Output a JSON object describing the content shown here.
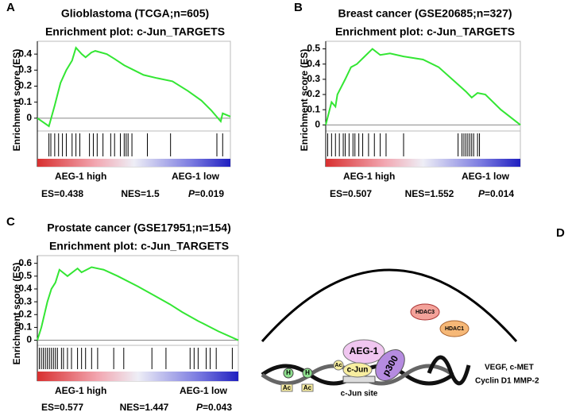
{
  "chart_data": [
    {
      "type": "line",
      "panel": "A",
      "title": "Glioblastoma (TCGA;n=605)",
      "subtitle": "Enrichment plot: c-Jun_TARGETS",
      "ylabel": "Enrichment score (ES)",
      "xlim": [
        0,
        100
      ],
      "ylim": [
        -0.08,
        0.48
      ],
      "yticks": [
        0,
        0.1,
        0.2,
        0.3,
        0.4
      ],
      "x": [
        0,
        6,
        9,
        12,
        15,
        18,
        20,
        23,
        25,
        28,
        30,
        33,
        36,
        40,
        45,
        50,
        55,
        62,
        70,
        78,
        85,
        90,
        95,
        96,
        100
      ],
      "values": [
        0,
        -0.05,
        0.08,
        0.22,
        0.3,
        0.36,
        0.44,
        0.4,
        0.38,
        0.41,
        0.42,
        0.41,
        0.4,
        0.37,
        0.33,
        0.3,
        0.27,
        0.25,
        0.23,
        0.17,
        0.11,
        0.05,
        -0.02,
        0.03,
        0.01
      ],
      "color": "#33e633",
      "hits": [
        6,
        7,
        9,
        11,
        13,
        15,
        18,
        20,
        22,
        27,
        29,
        31,
        34,
        38,
        40,
        43,
        45,
        46,
        47,
        49,
        57,
        69,
        93,
        96
      ],
      "high_label": "AEG-1 high",
      "low_label": "AEG-1 low",
      "es": "ES=0.438",
      "nes": "NES=1.5",
      "p_symbol": "P",
      "p_value": "=0.019"
    },
    {
      "type": "line",
      "panel": "B",
      "title": "Breast cancer (GSE20685;n=327)",
      "subtitle": "Enrichment plot: c-Jun_TARGETS",
      "ylabel": "Enrichment score (ES)",
      "xlim": [
        0,
        100
      ],
      "ylim": [
        -0.04,
        0.55
      ],
      "yticks": [
        0,
        0.1,
        0.2,
        0.3,
        0.4,
        0.5
      ],
      "x": [
        0,
        3,
        5,
        6,
        10,
        13,
        16,
        20,
        24,
        28,
        33,
        40,
        50,
        58,
        65,
        72,
        75,
        78,
        82,
        90,
        100
      ],
      "values": [
        0,
        0.15,
        0.12,
        0.2,
        0.3,
        0.38,
        0.4,
        0.45,
        0.5,
        0.46,
        0.47,
        0.45,
        0.43,
        0.38,
        0.3,
        0.22,
        0.18,
        0.21,
        0.2,
        0.1,
        0
      ],
      "color": "#33e633",
      "hits": [
        1,
        3,
        5,
        7,
        9,
        10,
        12,
        14,
        15,
        17,
        19,
        22,
        25,
        28,
        31,
        40,
        68,
        70,
        71,
        72,
        73,
        74,
        75,
        76,
        78,
        79
      ],
      "high_label": "AEG-1 high",
      "low_label": "AEG-1 low",
      "es": "ES=0.507",
      "nes": "NES=1.552",
      "p_symbol": "P",
      "p_value": "=0.014"
    },
    {
      "type": "line",
      "panel": "C",
      "title": "Prostate cancer (GSE17951;n=154)",
      "subtitle": "Enrichment plot: c-Jun_TARGETS",
      "ylabel": "Enrichment score (ES)",
      "xlim": [
        0,
        100
      ],
      "ylim": [
        -0.04,
        0.66
      ],
      "yticks": [
        0,
        0.1,
        0.2,
        0.3,
        0.4,
        0.5,
        0.6
      ],
      "x": [
        0,
        2,
        5,
        7,
        9,
        11,
        15,
        20,
        22,
        27,
        33,
        40,
        50,
        58,
        66,
        72,
        80,
        90,
        100
      ],
      "values": [
        0,
        0.1,
        0.3,
        0.4,
        0.45,
        0.55,
        0.5,
        0.56,
        0.53,
        0.57,
        0.55,
        0.5,
        0.42,
        0.35,
        0.28,
        0.22,
        0.15,
        0.07,
        0
      ],
      "color": "#33e633",
      "hits": [
        1,
        2,
        3,
        4,
        5,
        6,
        7,
        8,
        9,
        10,
        12,
        13,
        15,
        17,
        20,
        22,
        24,
        27,
        30,
        38,
        43,
        57,
        64,
        76,
        78,
        80,
        84,
        86,
        89,
        97
      ],
      "high_label": "AEG-1 high",
      "low_label": "AEG-1 low",
      "es": "ES=0.577",
      "nes": "NES=1.447",
      "p_symbol": "P",
      "p_value": "=0.043"
    }
  ],
  "diagram": {
    "panel": "D",
    "hdac3": "HDAC3",
    "hdac1": "HDAC1",
    "aeg1": "AEG-1",
    "p300": "p300",
    "cjun": "c-Jun",
    "ac": "Ac",
    "h": "H",
    "site": "c-Jun site",
    "genes1": "VEGF,  c-MET",
    "genes2": "Cyclin D1  MMP-2"
  }
}
